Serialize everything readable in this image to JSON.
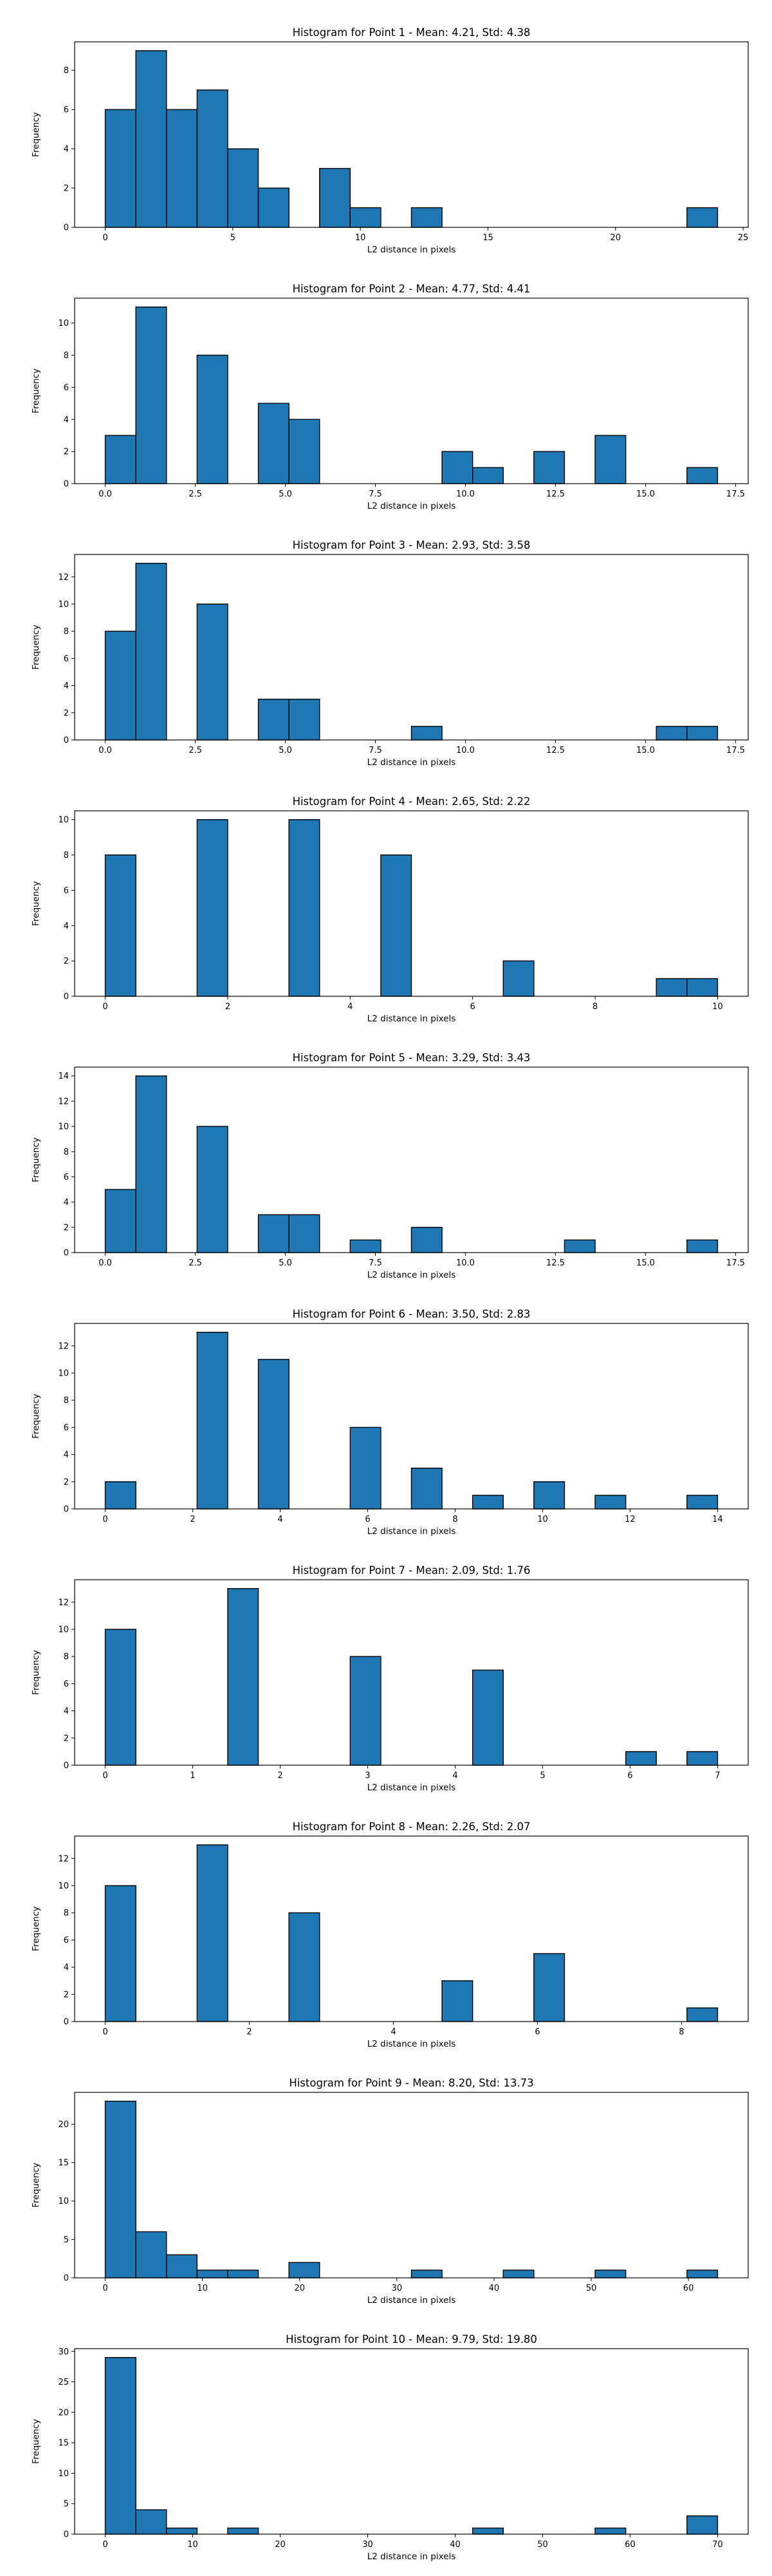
{
  "figure": {
    "background": "#ffffff",
    "bar_color": "#1f77b4",
    "edge_color": "#000000"
  },
  "chart_data": [
    {
      "type": "bar",
      "title": "Histogram for Point 1 - Mean: 4.21, Std: 4.38",
      "xlabel": "L2 distance in pixels",
      "ylabel": "Frequency",
      "xlim": [
        -1.2,
        25.2
      ],
      "ylim": [
        0,
        9.45
      ],
      "xticks": [
        0,
        5,
        10,
        15,
        20,
        25
      ],
      "xtick_labels": [
        "0",
        "5",
        "10",
        "15",
        "20",
        "25"
      ],
      "yticks": [
        0,
        2,
        4,
        6,
        8
      ],
      "ytick_labels": [
        "0",
        "2",
        "4",
        "6",
        "8"
      ],
      "bin_start": 0,
      "bin_width": 1.2,
      "counts": [
        6,
        9,
        6,
        7,
        4,
        2,
        0,
        3,
        1,
        0,
        1,
        0,
        0,
        0,
        0,
        0,
        0,
        0,
        0,
        1
      ],
      "grid": false,
      "legend": "none"
    },
    {
      "type": "bar",
      "title": "Histogram for Point 2 - Mean: 4.77, Std: 4.41",
      "xlabel": "L2 distance in pixels",
      "ylabel": "Frequency",
      "xlim": [
        -0.85,
        17.85
      ],
      "ylim": [
        0,
        11.55
      ],
      "xticks": [
        0,
        2.5,
        5,
        7.5,
        10,
        12.5,
        15,
        17.5
      ],
      "xtick_labels": [
        "0.0",
        "2.5",
        "5.0",
        "7.5",
        "10.0",
        "12.5",
        "15.0",
        "17.5"
      ],
      "yticks": [
        0,
        2,
        4,
        6,
        8,
        10
      ],
      "ytick_labels": [
        "0",
        "2",
        "4",
        "6",
        "8",
        "10"
      ],
      "bin_start": 0,
      "bin_width": 0.85,
      "counts": [
        3,
        11,
        0,
        8,
        0,
        5,
        4,
        0,
        0,
        0,
        0,
        2,
        1,
        0,
        2,
        0,
        3,
        0,
        0,
        1
      ],
      "grid": false,
      "legend": "none"
    },
    {
      "type": "bar",
      "title": "Histogram for Point 3 - Mean: 2.93, Std: 3.58",
      "xlabel": "L2 distance in pixels",
      "ylabel": "Frequency",
      "xlim": [
        -0.85,
        17.85
      ],
      "ylim": [
        0,
        13.65
      ],
      "xticks": [
        0,
        2.5,
        5,
        7.5,
        10,
        12.5,
        15,
        17.5
      ],
      "xtick_labels": [
        "0.0",
        "2.5",
        "5.0",
        "7.5",
        "10.0",
        "12.5",
        "15.0",
        "17.5"
      ],
      "yticks": [
        0,
        2,
        4,
        6,
        8,
        10,
        12
      ],
      "ytick_labels": [
        "0",
        "2",
        "4",
        "6",
        "8",
        "10",
        "12"
      ],
      "bin_start": 0,
      "bin_width": 0.85,
      "counts": [
        8,
        13,
        0,
        10,
        0,
        3,
        3,
        0,
        0,
        0,
        1,
        0,
        0,
        0,
        0,
        0,
        0,
        0,
        1,
        1
      ],
      "grid": false,
      "legend": "none"
    },
    {
      "type": "bar",
      "title": "Histogram for Point 4 - Mean: 2.65, Std: 2.22",
      "xlabel": "L2 distance in pixels",
      "ylabel": "Frequency",
      "xlim": [
        -0.5,
        10.5
      ],
      "ylim": [
        0,
        10.5
      ],
      "xticks": [
        0,
        2,
        4,
        6,
        8,
        10
      ],
      "xtick_labels": [
        "0",
        "2",
        "4",
        "6",
        "8",
        "10"
      ],
      "yticks": [
        0,
        2,
        4,
        6,
        8,
        10
      ],
      "ytick_labels": [
        "0",
        "2",
        "4",
        "6",
        "8",
        "10"
      ],
      "bin_start": 0,
      "bin_width": 0.5,
      "counts": [
        8,
        0,
        0,
        10,
        0,
        0,
        10,
        0,
        0,
        8,
        0,
        0,
        0,
        2,
        0,
        0,
        0,
        0,
        1,
        1
      ],
      "grid": false,
      "legend": "none"
    },
    {
      "type": "bar",
      "title": "Histogram for Point 5 - Mean: 3.29, Std: 3.43",
      "xlabel": "L2 distance in pixels",
      "ylabel": "Frequency",
      "xlim": [
        -0.85,
        17.85
      ],
      "ylim": [
        0,
        14.7
      ],
      "xticks": [
        0,
        2.5,
        5,
        7.5,
        10,
        12.5,
        15,
        17.5
      ],
      "xtick_labels": [
        "0.0",
        "2.5",
        "5.0",
        "7.5",
        "10.0",
        "12.5",
        "15.0",
        "17.5"
      ],
      "yticks": [
        0,
        2,
        4,
        6,
        8,
        10,
        12,
        14
      ],
      "ytick_labels": [
        "0",
        "2",
        "4",
        "6",
        "8",
        "10",
        "12",
        "14"
      ],
      "bin_start": 0,
      "bin_width": 0.85,
      "counts": [
        5,
        14,
        0,
        10,
        0,
        3,
        3,
        0,
        1,
        0,
        2,
        0,
        0,
        0,
        0,
        1,
        0,
        0,
        0,
        1
      ],
      "grid": false,
      "legend": "none"
    },
    {
      "type": "bar",
      "title": "Histogram for Point 6 - Mean: 3.50, Std: 2.83",
      "xlabel": "L2 distance in pixels",
      "ylabel": "Frequency",
      "xlim": [
        -0.7,
        14.7
      ],
      "ylim": [
        0,
        13.65
      ],
      "xticks": [
        0,
        2,
        4,
        6,
        8,
        10,
        12,
        14
      ],
      "xtick_labels": [
        "0",
        "2",
        "4",
        "6",
        "8",
        "10",
        "12",
        "14"
      ],
      "yticks": [
        0,
        2,
        4,
        6,
        8,
        10,
        12
      ],
      "ytick_labels": [
        "0",
        "2",
        "4",
        "6",
        "8",
        "10",
        "12"
      ],
      "bin_start": 0,
      "bin_width": 0.7,
      "counts": [
        2,
        0,
        0,
        13,
        0,
        11,
        0,
        0,
        6,
        0,
        3,
        0,
        1,
        0,
        2,
        0,
        1,
        0,
        0,
        1
      ],
      "grid": false,
      "legend": "none"
    },
    {
      "type": "bar",
      "title": "Histogram for Point 7 - Mean: 2.09, Std: 1.76",
      "xlabel": "L2 distance in pixels",
      "ylabel": "Frequency",
      "xlim": [
        -0.35,
        7.35
      ],
      "ylim": [
        0,
        13.65
      ],
      "xticks": [
        0,
        1,
        2,
        3,
        4,
        5,
        6,
        7
      ],
      "xtick_labels": [
        "0",
        "1",
        "2",
        "3",
        "4",
        "5",
        "6",
        "7"
      ],
      "yticks": [
        0,
        2,
        4,
        6,
        8,
        10,
        12
      ],
      "ytick_labels": [
        "0",
        "2",
        "4",
        "6",
        "8",
        "10",
        "12"
      ],
      "bin_start": 0,
      "bin_width": 0.35,
      "counts": [
        10,
        0,
        0,
        0,
        13,
        0,
        0,
        0,
        8,
        0,
        0,
        0,
        7,
        0,
        0,
        0,
        0,
        1,
        0,
        1
      ],
      "grid": false,
      "legend": "none"
    },
    {
      "type": "bar",
      "title": "Histogram for Point 8 - Mean: 2.26, Std: 2.07",
      "xlabel": "L2 distance in pixels",
      "ylabel": "Frequency",
      "xlim": [
        -0.425,
        8.925
      ],
      "ylim": [
        0,
        13.65
      ],
      "xticks": [
        0,
        2,
        4,
        6,
        8
      ],
      "xtick_labels": [
        "0",
        "2",
        "4",
        "6",
        "8"
      ],
      "yticks": [
        0,
        2,
        4,
        6,
        8,
        10,
        12
      ],
      "ytick_labels": [
        "0",
        "2",
        "4",
        "6",
        "8",
        "10",
        "12"
      ],
      "bin_start": 0,
      "bin_width": 0.425,
      "counts": [
        10,
        0,
        0,
        13,
        0,
        0,
        8,
        0,
        0,
        0,
        0,
        3,
        0,
        0,
        5,
        0,
        0,
        0,
        0,
        1
      ],
      "grid": false,
      "legend": "none"
    },
    {
      "type": "bar",
      "title": "Histogram for Point 9 - Mean: 8.20, Std: 13.73",
      "xlabel": "L2 distance in pixels",
      "ylabel": "Frequency",
      "xlim": [
        -3.15,
        66.15
      ],
      "ylim": [
        0,
        24.15
      ],
      "xticks": [
        0,
        10,
        20,
        30,
        40,
        50,
        60
      ],
      "xtick_labels": [
        "0",
        "10",
        "20",
        "30",
        "40",
        "50",
        "60"
      ],
      "yticks": [
        0,
        5,
        10,
        15,
        20
      ],
      "ytick_labels": [
        "0",
        "5",
        "10",
        "15",
        "20"
      ],
      "bin_start": 0,
      "bin_width": 3.15,
      "counts": [
        23,
        6,
        3,
        1,
        1,
        0,
        2,
        0,
        0,
        0,
        1,
        0,
        0,
        1,
        0,
        0,
        1,
        0,
        0,
        1
      ],
      "grid": false,
      "legend": "none"
    },
    {
      "type": "bar",
      "title": "Histogram for Point 10 - Mean: 9.79, Std: 19.80",
      "xlabel": "L2 distance in pixels",
      "ylabel": "Frequency",
      "xlim": [
        -3.5,
        73.5
      ],
      "ylim": [
        0,
        30.45
      ],
      "xticks": [
        0,
        10,
        20,
        30,
        40,
        50,
        60,
        70
      ],
      "xtick_labels": [
        "0",
        "10",
        "20",
        "30",
        "40",
        "50",
        "60",
        "70"
      ],
      "yticks": [
        0,
        5,
        10,
        15,
        20,
        25,
        30
      ],
      "ytick_labels": [
        "0",
        "5",
        "10",
        "15",
        "20",
        "25",
        "30"
      ],
      "bin_start": 0,
      "bin_width": 3.5,
      "counts": [
        29,
        4,
        1,
        0,
        1,
        0,
        0,
        0,
        0,
        0,
        0,
        0,
        1,
        0,
        0,
        0,
        1,
        0,
        0,
        3
      ],
      "grid": false,
      "legend": "none"
    }
  ]
}
